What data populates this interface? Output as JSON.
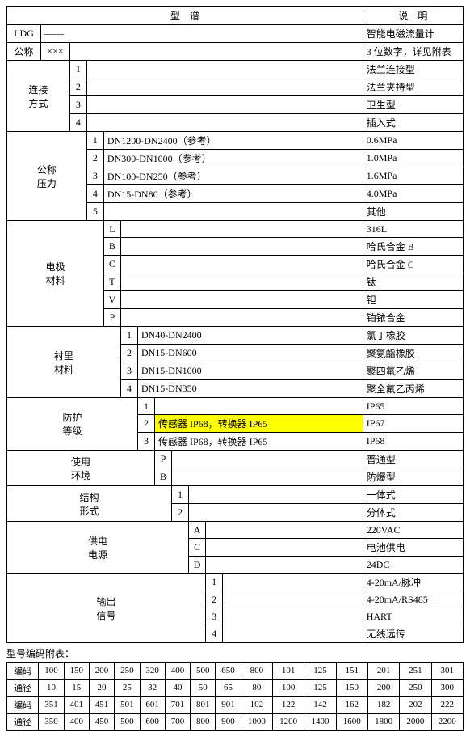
{
  "headers": {
    "model_spectrum": "型　谱",
    "description": "说　明"
  },
  "rows": {
    "ldg": {
      "code": "LDG",
      "mark": "——",
      "desc": "智能电磁流量计"
    },
    "nominal": {
      "label": "公称",
      "mark": "×××",
      "desc": "3 位数字，详见附表"
    },
    "connection": {
      "label": "连接方式",
      "items": [
        {
          "code": "1",
          "desc": "法兰连接型"
        },
        {
          "code": "2",
          "desc": "法兰夹持型"
        },
        {
          "code": "3",
          "desc": "卫生型"
        },
        {
          "code": "4",
          "desc": "插入式"
        }
      ]
    },
    "pressure": {
      "label": "公称压力",
      "items": [
        {
          "code": "1",
          "text": "DN1200-DN2400（参考）",
          "desc": "0.6MPa"
        },
        {
          "code": "2",
          "text": "DN300-DN1000（参考）",
          "desc": "1.0MPa"
        },
        {
          "code": "3",
          "text": "DN100-DN250（参考）",
          "desc": "1.6MPa"
        },
        {
          "code": "4",
          "text": "DN15-DN80（参考）",
          "desc": "4.0MPa"
        },
        {
          "code": "5",
          "text": "",
          "desc": "其他"
        }
      ]
    },
    "electrode": {
      "label": "电极材料",
      "items": [
        {
          "code": "L",
          "desc": "316L"
        },
        {
          "code": "B",
          "desc": "哈氏合金 B"
        },
        {
          "code": "C",
          "desc": "哈氏合金 C"
        },
        {
          "code": "T",
          "desc": "钛"
        },
        {
          "code": "V",
          "desc": "钽"
        },
        {
          "code": "P",
          "desc": "铂铱合金"
        }
      ]
    },
    "lining": {
      "label": "衬里材料",
      "items": [
        {
          "code": "1",
          "text": "DN40-DN2400",
          "desc": "氯丁橡胶"
        },
        {
          "code": "2",
          "text": "DN15-DN600",
          "desc": "聚氨酯橡胶"
        },
        {
          "code": "3",
          "text": "DN15-DN1000",
          "desc": "聚四氟乙烯"
        },
        {
          "code": "4",
          "text": "DN15-DN350",
          "desc": "聚全氟乙丙烯"
        }
      ]
    },
    "protection": {
      "label": "防护等级",
      "items": [
        {
          "code": "1",
          "text": "",
          "desc": "IP65",
          "highlight": false
        },
        {
          "code": "2",
          "text": "传感器 IP68，转换器 IP65",
          "desc": "IP67",
          "highlight": true
        },
        {
          "code": "3",
          "text": "传感器 IP68，转换器 IP65",
          "desc": "IP68",
          "highlight": false
        }
      ]
    },
    "environment": {
      "label": "使用环境",
      "items": [
        {
          "code": "P",
          "desc": "普通型"
        },
        {
          "code": "B",
          "desc": "防爆型"
        }
      ]
    },
    "structure": {
      "label": "结构形式",
      "items": [
        {
          "code": "1",
          "desc": "一体式"
        },
        {
          "code": "2",
          "desc": "分体式"
        }
      ]
    },
    "power": {
      "label": "供电电源",
      "items": [
        {
          "code": "A",
          "desc": "220VAC"
        },
        {
          "code": "C",
          "desc": "电池供电"
        },
        {
          "code": "D",
          "desc": "24DC"
        }
      ]
    },
    "output": {
      "label": "输出信号",
      "items": [
        {
          "code": "1",
          "desc": "4-20mA/脉冲"
        },
        {
          "code": "2",
          "desc": "4-20mA/RS485"
        },
        {
          "code": "3",
          "desc": "HART"
        },
        {
          "code": "4",
          "desc": "无线远传"
        }
      ]
    }
  },
  "appendix": {
    "title": "型号编码附表：",
    "labels": {
      "code": "编码",
      "diameter": "通径"
    },
    "rows": [
      [
        "100",
        "150",
        "200",
        "250",
        "320",
        "400",
        "500",
        "650",
        "800",
        "101",
        "125",
        "151",
        "201",
        "251",
        "301"
      ],
      [
        "10",
        "15",
        "20",
        "25",
        "32",
        "40",
        "50",
        "65",
        "80",
        "100",
        "125",
        "150",
        "200",
        "250",
        "300"
      ],
      [
        "351",
        "401",
        "451",
        "501",
        "601",
        "701",
        "801",
        "901",
        "102",
        "122",
        "142",
        "162",
        "182",
        "202",
        "222"
      ],
      [
        "350",
        "400",
        "450",
        "500",
        "600",
        "700",
        "800",
        "900",
        "1000",
        "1200",
        "1400",
        "1600",
        "1800",
        "2000",
        "2200"
      ]
    ]
  }
}
